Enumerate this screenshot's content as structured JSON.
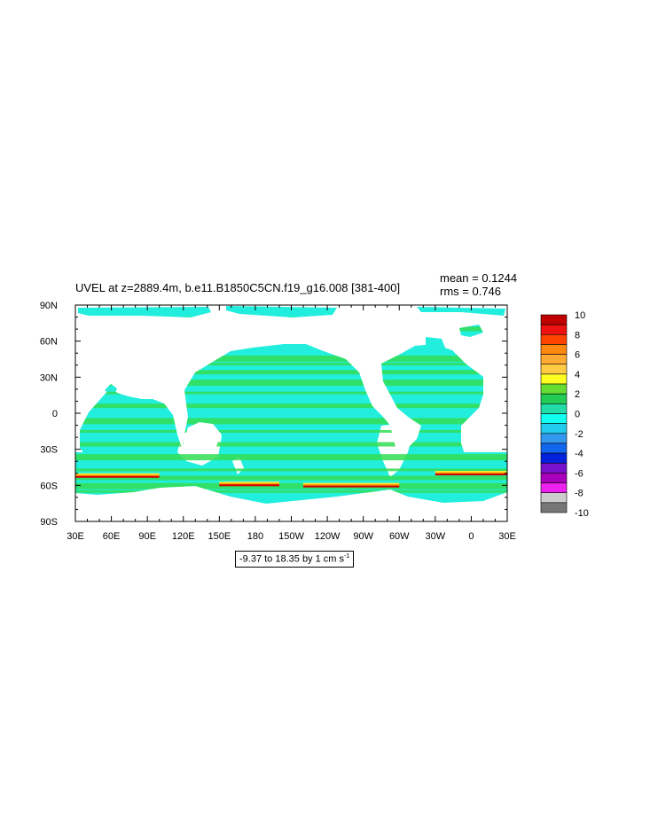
{
  "header": {
    "title": "UVEL at z=2889.4m, b.e11.B1850C5CN.f19_g16.008 [381-400]",
    "mean": "mean = 0.1244",
    "rms": "rms = 0.746"
  },
  "footer": {
    "range_text": "-9.37 to 18.35 by 1 cm s",
    "range_exp": "-1"
  },
  "chart_data": {
    "type": "heatmap",
    "title": "UVEL at z=2889.4m, b.e11.B1850C5CN.f19_g16.008 [381-400]",
    "stats": {
      "mean": 0.1244,
      "rms": 0.746
    },
    "data_range": {
      "min": -9.37,
      "max": 18.35,
      "interval": 1,
      "units": "cm s-1"
    },
    "x_axis": {
      "ticks": [
        "30E",
        "60E",
        "90E",
        "120E",
        "150E",
        "180",
        "150W",
        "120W",
        "90W",
        "60W",
        "30W",
        "0",
        "30E"
      ],
      "lon_range": [
        30,
        390
      ]
    },
    "y_axis": {
      "ticks": [
        "90N",
        "60N",
        "30N",
        "0",
        "30S",
        "60S",
        "90S"
      ],
      "lat_range": [
        -90,
        90
      ]
    },
    "colorbar": {
      "labels": [
        "10",
        "8",
        "6",
        "4",
        "2",
        "0",
        "-2",
        "-4",
        "-6",
        "-8",
        "-10"
      ],
      "colors": [
        "#c00000",
        "#ee1111",
        "#ff4400",
        "#ff8811",
        "#ffaa33",
        "#ffcc44",
        "#ffff22",
        "#66dd33",
        "#22cc55",
        "#22ddaa",
        "#11ffee",
        "#22ccee",
        "#3399ee",
        "#1166ee",
        "#0022dd",
        "#7711cc",
        "#aa00bb",
        "#ee22ee",
        "#cccccc",
        "#777777"
      ]
    },
    "ocean_base_color": "#22eedd",
    "band_color": "#33dd55",
    "front_colors": [
      "#ffee33",
      "#ff9900",
      "#cc0000"
    ]
  }
}
